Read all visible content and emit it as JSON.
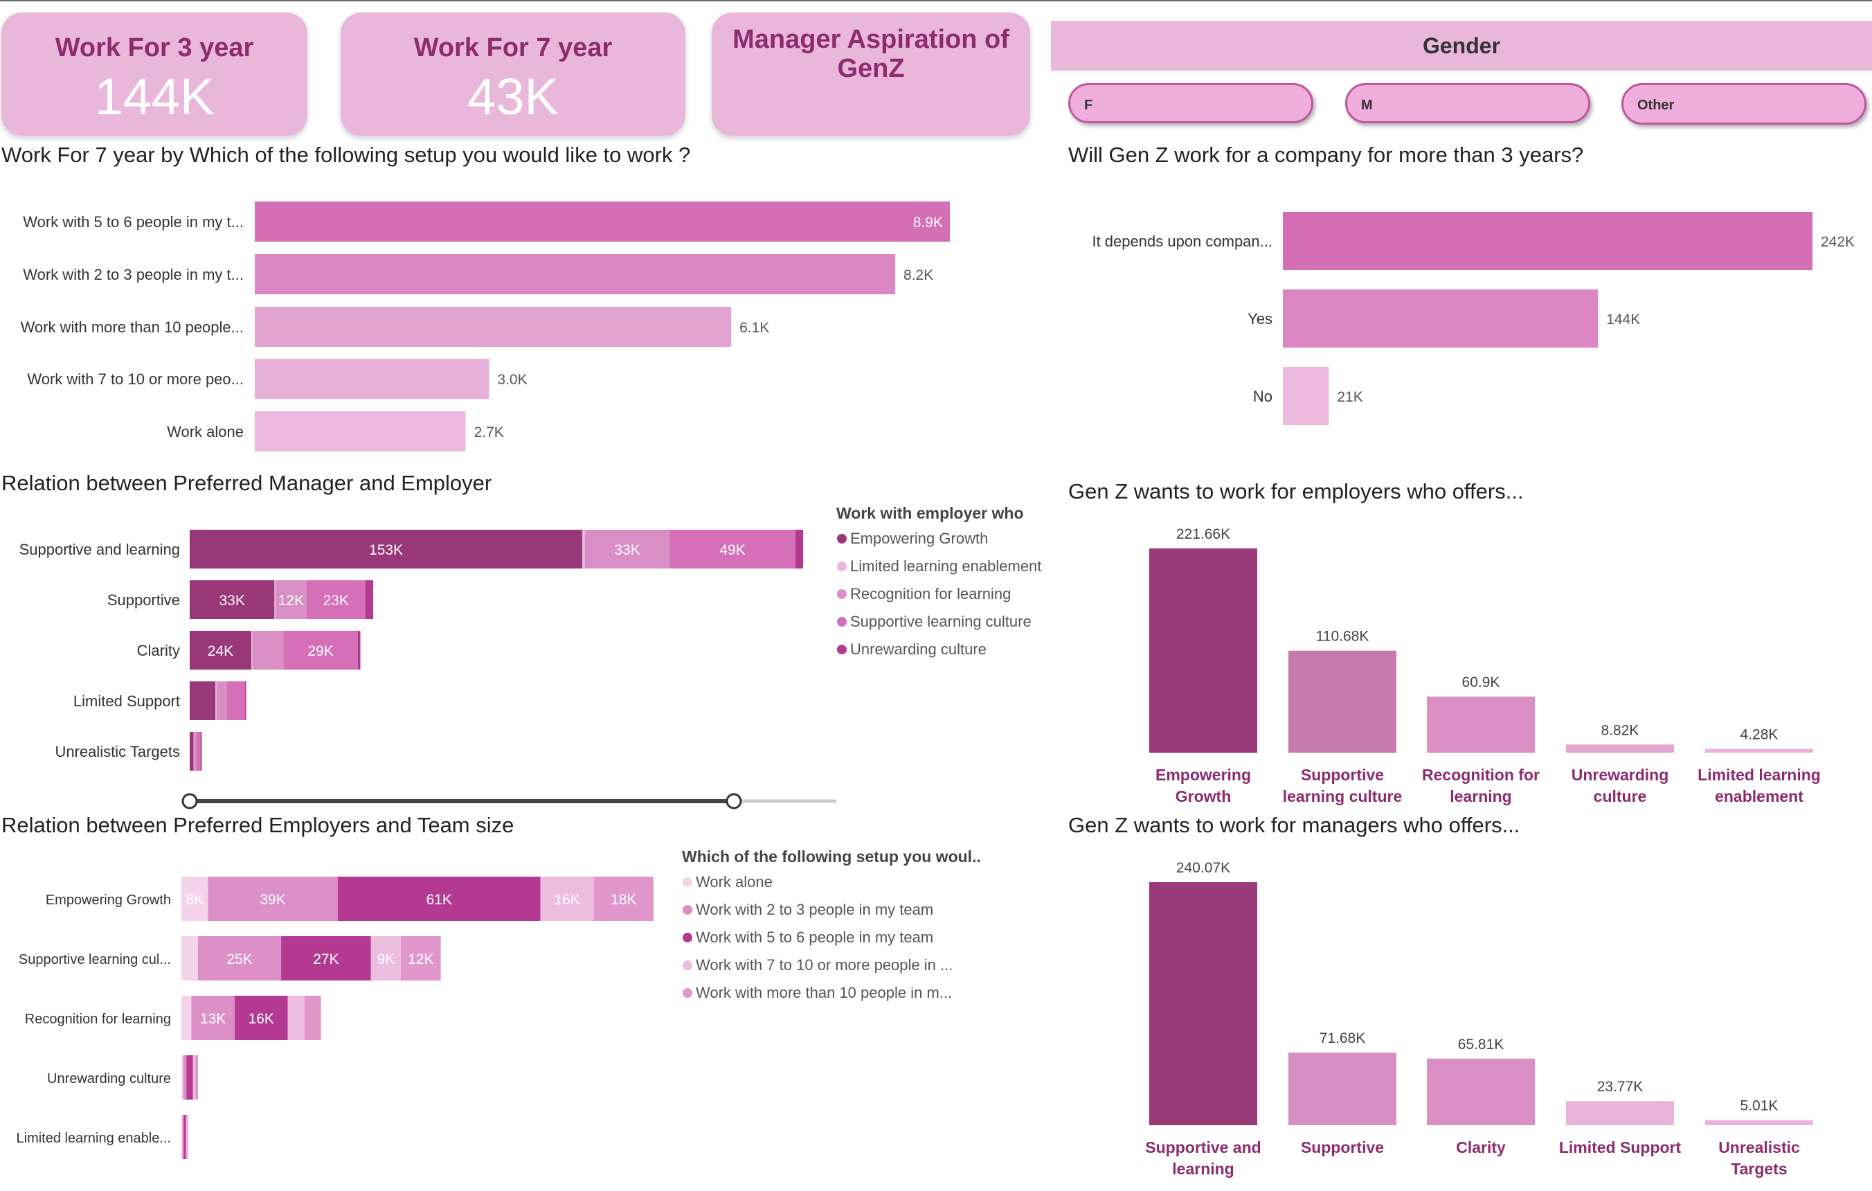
{
  "cards": [
    {
      "title": "Work For 3 year",
      "value": "144K"
    },
    {
      "title": "Work For 7 year",
      "value": "43K"
    },
    {
      "title": "Manager Aspiration of GenZ",
      "value": ""
    }
  ],
  "gender_slicer": {
    "title": "Gender",
    "options": [
      "F",
      "M",
      "Other"
    ]
  },
  "chart_data": [
    {
      "type": "bar",
      "orientation": "horizontal",
      "title": "Work For 7 year by Which of the following setup you would like to work ?",
      "categories": [
        "Work with 5 to 6 people in my t...",
        "Work with 2 to 3 people in my t...",
        "Work with more than 10 people...",
        "Work with 7 to 10 or more peo...",
        "Work alone"
      ],
      "values": [
        8900,
        8200,
        6100,
        3000,
        2700
      ],
      "data_labels": [
        "8.9K",
        "8.2K",
        "6.1K",
        "3.0K",
        "2.7K"
      ],
      "colors": [
        "#d46fb6",
        "#dc87c3",
        "#e4a4d2",
        "#e8b1d9",
        "#ebbadd"
      ]
    },
    {
      "type": "bar",
      "orientation": "horizontal",
      "title": "Will Gen Z work for a company for more than 3 years?",
      "categories": [
        "It depends upon compan...",
        "Yes",
        "No"
      ],
      "values": [
        242000,
        144000,
        21000
      ],
      "data_labels": [
        "242K",
        "144K",
        "21K"
      ],
      "colors": [
        "#d46fb6",
        "#dc87c3",
        "#ebbadd"
      ]
    },
    {
      "type": "bar",
      "orientation": "horizontal",
      "stacked": true,
      "title": "Relation between Preferred Manager and Employer",
      "legend_title": "Work with employer who",
      "legend_position": "right",
      "categories": [
        "Supportive and learning",
        "Supportive",
        "Clarity",
        "Limited Support",
        "Unrealistic Targets"
      ],
      "series": [
        {
          "name": "Empowering Growth",
          "color": "#993878",
          "values": [
            153000,
            33000,
            24000,
            10000,
            1500
          ],
          "labels": [
            "153K",
            "33K",
            "24K",
            "",
            ""
          ]
        },
        {
          "name": "Limited learning enablement",
          "color": "#eab6dc",
          "values": [
            1000,
            500,
            500,
            500,
            200
          ],
          "labels": [
            "",
            "",
            "",
            "",
            ""
          ]
        },
        {
          "name": "Recognition for learning",
          "color": "#d98ec4",
          "values": [
            33000,
            12000,
            12000,
            4000,
            1000
          ],
          "labels": [
            "33K",
            "12K",
            "",
            "",
            ""
          ]
        },
        {
          "name": "Supportive learning culture",
          "color": "#d56fb8",
          "values": [
            49000,
            23000,
            29000,
            7000,
            1500
          ],
          "labels": [
            "49K",
            "23K",
            "29K",
            "",
            ""
          ]
        },
        {
          "name": "Unrewarding culture",
          "color": "#b43a91",
          "values": [
            3000,
            3000,
            1000,
            500,
            500
          ],
          "labels": [
            "",
            "",
            "",
            "",
            ""
          ]
        }
      ]
    },
    {
      "type": "bar",
      "orientation": "horizontal",
      "stacked": true,
      "title": "Relation between Preferred Employers and Team size",
      "legend_title": "Which of the following setup you woul..",
      "legend_position": "right",
      "categories": [
        "Empowering Growth",
        "Supportive learning cul...",
        "Recognition for learning",
        "Unrewarding culture",
        "Limited learning enable..."
      ],
      "series": [
        {
          "name": "Work alone",
          "color": "#f4d4ea",
          "values": [
            8000,
            5000,
            3000,
            500,
            300
          ],
          "labels": [
            "8K",
            "",
            "",
            "",
            ""
          ]
        },
        {
          "name": "Work with 2 to 3 people in my team",
          "color": "#dd8fc8",
          "values": [
            39000,
            25000,
            13000,
            1000,
            400
          ],
          "labels": [
            "39K",
            "25K",
            "13K",
            "",
            ""
          ]
        },
        {
          "name": "Work with 5 to 6 people in my team",
          "color": "#b43a91",
          "values": [
            61000,
            27000,
            16000,
            2000,
            700
          ],
          "labels": [
            "61K",
            "27K",
            "16K",
            "",
            ""
          ]
        },
        {
          "name": "Work with 7 to 10 or more people in ...",
          "color": "#edbde0",
          "values": [
            16000,
            9000,
            5000,
            700,
            300
          ],
          "labels": [
            "16K",
            "9K",
            "",
            "",
            ""
          ]
        },
        {
          "name": "Work with more than 10 people in m...",
          "color": "#e197cc",
          "values": [
            18000,
            12000,
            5000,
            800,
            300
          ],
          "labels": [
            "18K",
            "12K",
            "",
            "",
            ""
          ]
        }
      ]
    },
    {
      "type": "bar",
      "orientation": "vertical",
      "title": "Gen Z wants to work for employers who offers...",
      "categories": [
        "Empowering Growth",
        "Supportive learning culture",
        "Recognition for learning",
        "Unrewarding culture",
        "Limited learning enablement"
      ],
      "values": [
        221660,
        110680,
        60900,
        8820,
        4280
      ],
      "data_labels": [
        "221.66K",
        "110.68K",
        "60.9K",
        "8.82K",
        "4.28K"
      ],
      "colors": [
        "#9b3a7b",
        "#c679ad",
        "#d98ec4",
        "#e3a6d3",
        "#e8b4da"
      ]
    },
    {
      "type": "bar",
      "orientation": "vertical",
      "title": "Gen Z wants to work for managers who offers...",
      "categories": [
        "Supportive and learning",
        "Supportive",
        "Clarity",
        "Limited Support",
        "Unrealistic Targets"
      ],
      "values": [
        240070,
        71680,
        65810,
        23770,
        5010
      ],
      "data_labels": [
        "240.07K",
        "71.68K",
        "65.81K",
        "23.77K",
        "5.01K"
      ],
      "colors": [
        "#9b3a7b",
        "#d68fc4",
        "#d98ec4",
        "#e8b4da",
        "#e8b4da"
      ]
    }
  ],
  "colors": {
    "card_bg": "#e9b7da",
    "card_title": "#8c2b6e",
    "card_value": "#ffffff",
    "axis_label": "#8c2b6e"
  }
}
